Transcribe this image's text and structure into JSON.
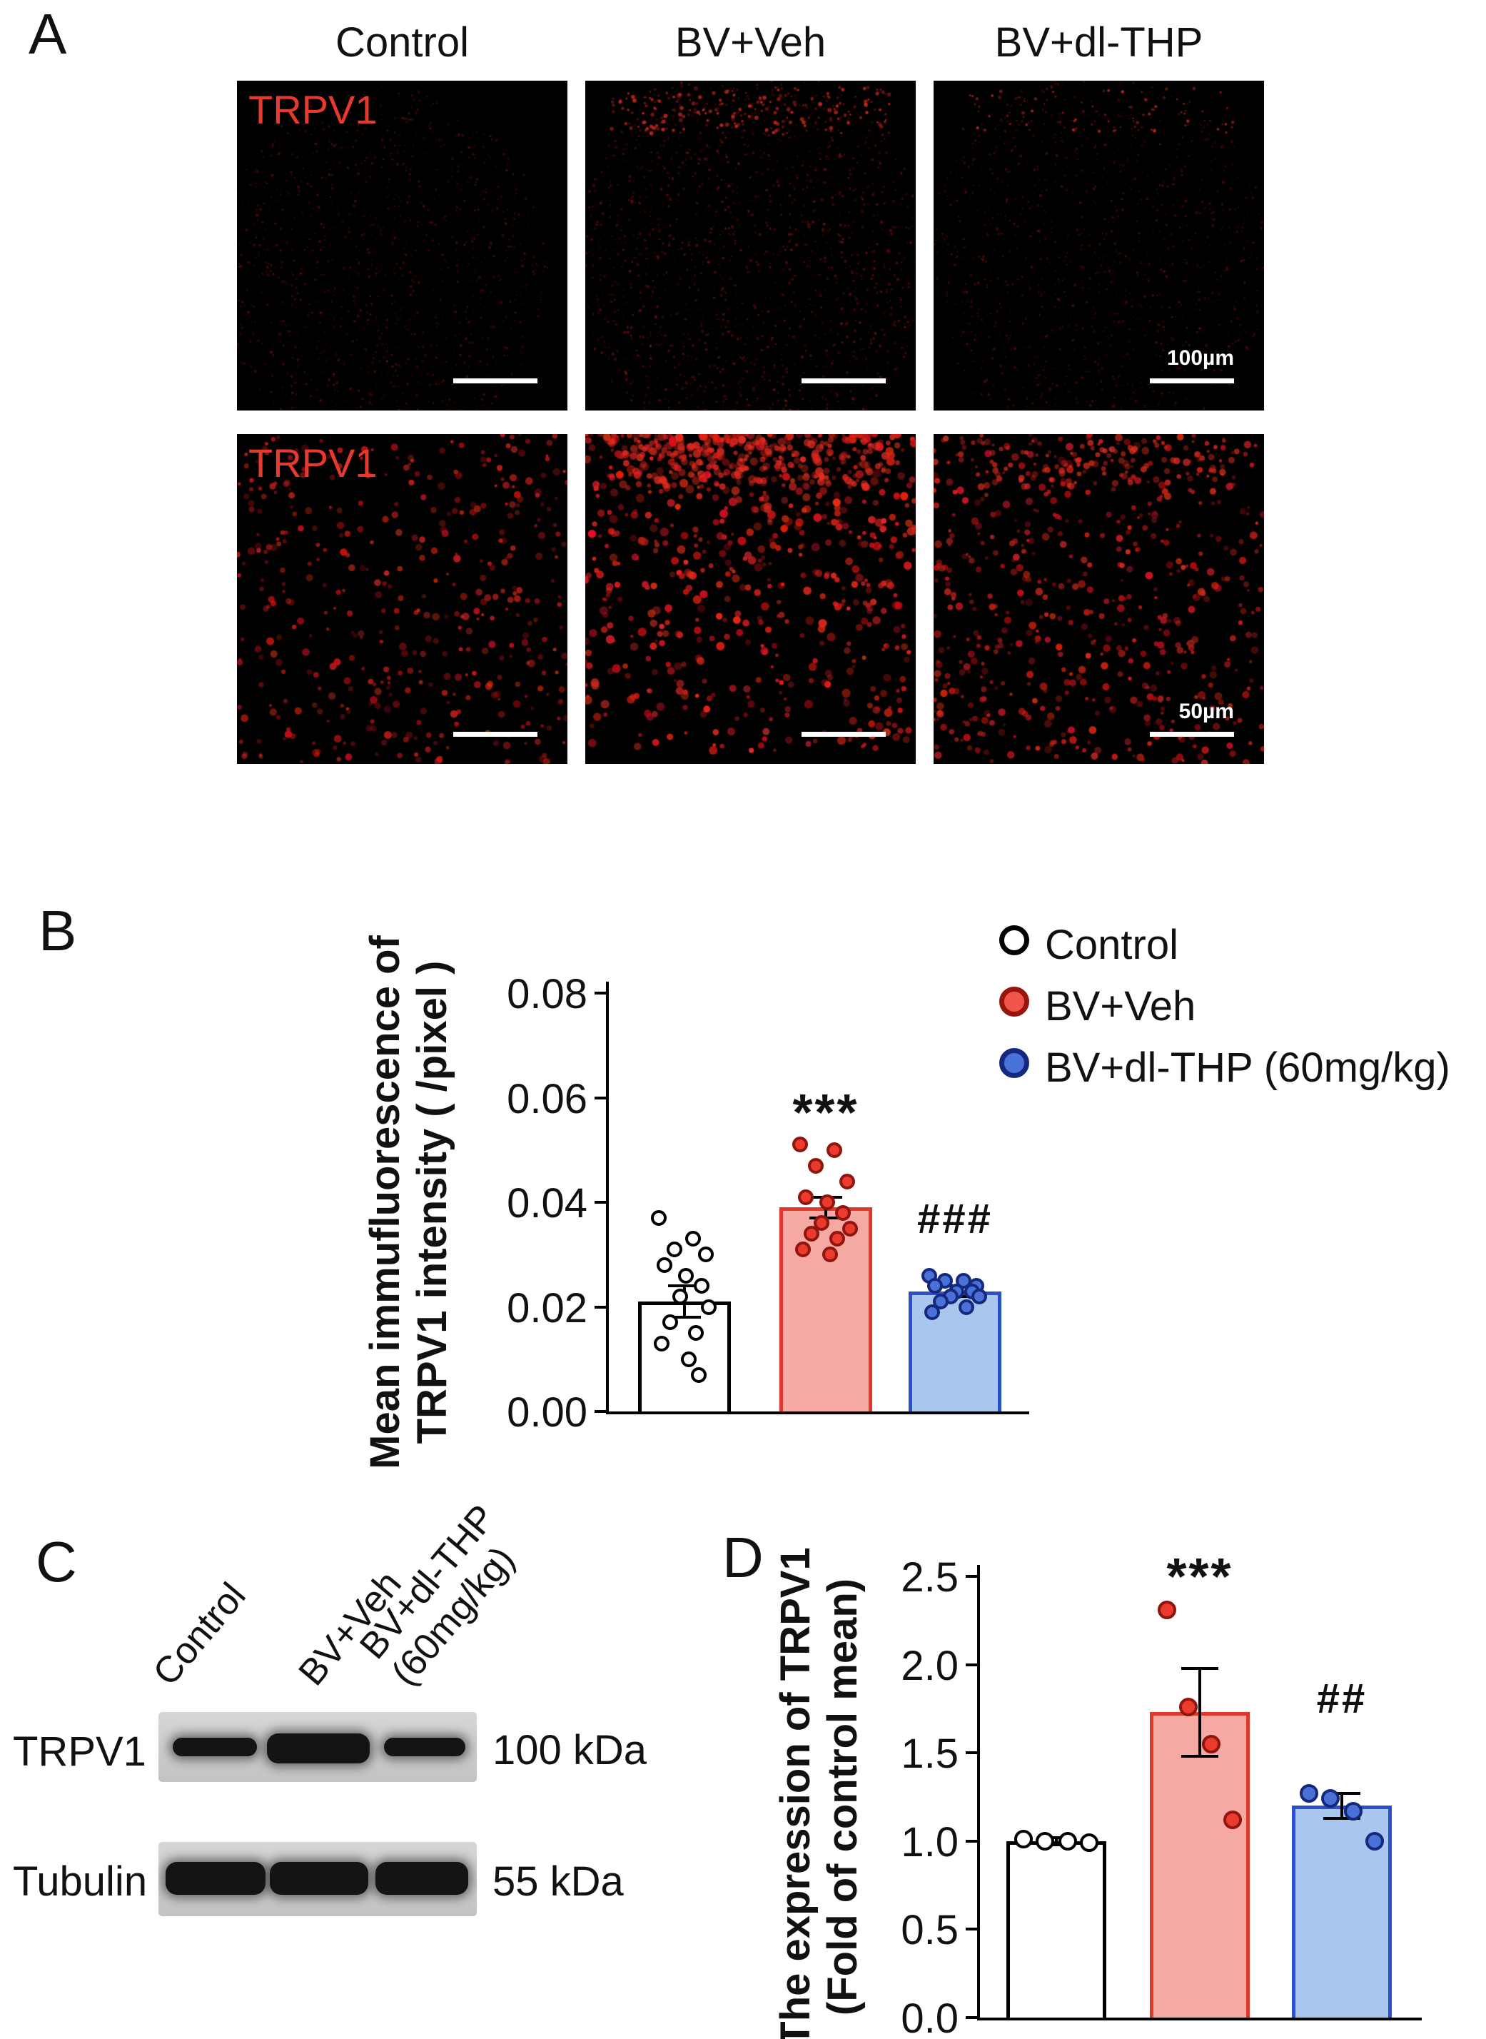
{
  "panel_a": {
    "label": "A",
    "columns": [
      "Control",
      "BV+Veh",
      "BV+dl-THP"
    ],
    "stain_label": "TRPV1",
    "scalebar_top": "100µm",
    "scalebar_bottom": "50µm"
  },
  "panel_b": {
    "label": "B",
    "legend": [
      {
        "label": "Control",
        "fill": "#ffffff",
        "ring": "#000000"
      },
      {
        "label": "BV+Veh",
        "fill": "#f2564a",
        "ring": "#97150b"
      },
      {
        "label": "BV+dl-THP (60mg/kg)",
        "fill": "#4a71d8",
        "ring": "#14297d"
      }
    ]
  },
  "panel_c": {
    "label": "C",
    "lanes": [
      [
        "Control"
      ],
      [
        "BV+Veh"
      ],
      [
        "BV+dl-THP",
        "(60mg/kg)"
      ]
    ],
    "blots": [
      {
        "protein": "TRPV1",
        "mw": "100 kDa"
      },
      {
        "protein": "Tubulin",
        "mw": "55 kDa"
      }
    ]
  },
  "panel_d": {
    "label": "D"
  },
  "chart_data": [
    {
      "id": "chart-b",
      "type": "bar",
      "ylabel": "Mean immufluorescence of TRPV1 intensity ( /pixel )",
      "ylabel_lines": [
        "Mean immufluorescence of",
        "TRPV1 intensity ( /pixel )"
      ],
      "categories": [
        "Control",
        "BV+Veh",
        "BV+dl-THP (60mg/kg)"
      ],
      "values": [
        0.021,
        0.039,
        0.023
      ],
      "errors": [
        0.003,
        0.002,
        0.001
      ],
      "points": [
        [
          0.037,
          0.033,
          0.031,
          0.03,
          0.028,
          0.026,
          0.024,
          0.022,
          0.02,
          0.017,
          0.015,
          0.013,
          0.01,
          0.007
        ],
        [
          0.051,
          0.05,
          0.047,
          0.044,
          0.041,
          0.04,
          0.038,
          0.036,
          0.035,
          0.034,
          0.033,
          0.031,
          0.03
        ],
        [
          0.026,
          0.025,
          0.025,
          0.024,
          0.024,
          0.023,
          0.023,
          0.022,
          0.022,
          0.021,
          0.02,
          0.019
        ]
      ],
      "significance": [
        "",
        "***",
        "###"
      ],
      "ylim": [
        0,
        0.08
      ],
      "yticks": [
        0,
        0.02,
        0.04,
        0.06,
        0.08
      ],
      "ytick_labels": [
        "0.00",
        "0.02",
        "0.04",
        "0.06",
        "0.08"
      ],
      "bar_fill": [
        "#ffffff",
        "#f6a9a2",
        "#a9c7ee"
      ],
      "bar_edge": [
        "#000000",
        "#e0382c",
        "#2b50c8"
      ],
      "dot_fill": [
        "#ffffff",
        "#ea3b2e",
        "#4a71d8"
      ],
      "dot_edge": [
        "#000000",
        "#8f160e",
        "#14297d"
      ],
      "legend_position": "top-right",
      "grid": false
    },
    {
      "id": "chart-d",
      "type": "bar",
      "ylabel": "The expression of TRPV1 (Fold of control mean)",
      "ylabel_lines": [
        "The expression of TRPV1",
        "(Fold of control mean)"
      ],
      "categories": [
        "Control",
        "BV+Veh",
        "BV+dl-THP (60mg/kg)"
      ],
      "values": [
        1.0,
        1.73,
        1.2
      ],
      "errors": [
        0.02,
        0.25,
        0.07
      ],
      "points": [
        [
          1.01,
          1.0,
          1.0,
          0.99
        ],
        [
          2.31,
          1.76,
          1.55,
          1.12
        ],
        [
          1.27,
          1.24,
          1.17,
          1.0
        ]
      ],
      "significance": [
        "",
        "***",
        "##"
      ],
      "ylim": [
        0,
        2.5
      ],
      "yticks": [
        0,
        0.5,
        1,
        1.5,
        2,
        2.5
      ],
      "ytick_labels": [
        "0.0",
        "0.5",
        "1.0",
        "1.5",
        "2.0",
        "2.5"
      ],
      "bar_fill": [
        "#ffffff",
        "#f6a9a2",
        "#a9c7ee"
      ],
      "bar_edge": [
        "#000000",
        "#e0382c",
        "#2b50c8"
      ],
      "dot_fill": [
        "#ffffff",
        "#ea3b2e",
        "#4a71d8"
      ],
      "dot_edge": [
        "#000000",
        "#8f160e",
        "#14297d"
      ],
      "grid": false
    }
  ]
}
